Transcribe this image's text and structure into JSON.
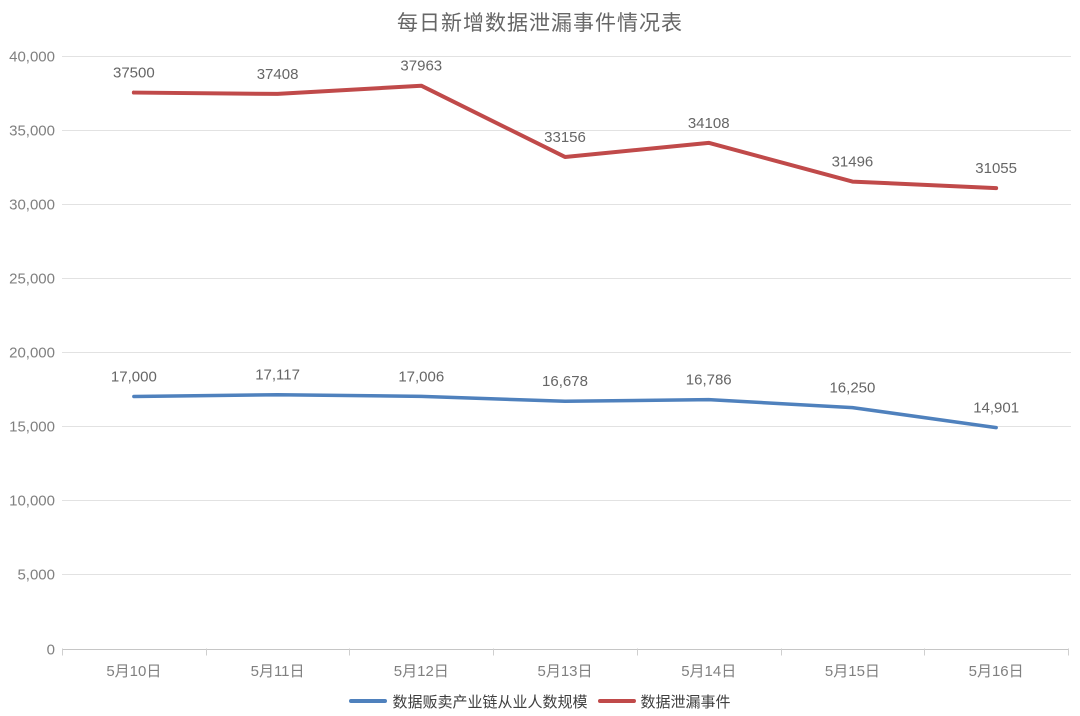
{
  "title": "每日新增数据泄漏事件情况表",
  "colors": {
    "blue": "#4f81bd",
    "red": "#c04a4a",
    "grid": "#e2e2e2",
    "axis": "#c6c6c6",
    "tick": "#cfcfcf",
    "tick_label": "#808080",
    "data_label": "#666666",
    "title_text": "#666666",
    "legend_text": "#404040",
    "background": "#ffffff"
  },
  "chart_data": {
    "type": "line",
    "title": "每日新增数据泄漏事件情况表",
    "categories": [
      "5月10日",
      "5月11日",
      "5月12日",
      "5月13日",
      "5月14日",
      "5月15日",
      "5月16日"
    ],
    "series": [
      {
        "name": "数据贩卖产业链从业人数规模",
        "color_key": "blue",
        "values": [
          17000,
          17117,
          17006,
          16678,
          16786,
          16250,
          14901
        ],
        "labels": [
          "17,000",
          "17,117",
          "17,006",
          "16,678",
          "16,786",
          "16,250",
          "14,901"
        ]
      },
      {
        "name": "数据泄漏事件",
        "color_key": "red",
        "values": [
          37500,
          37408,
          37963,
          33156,
          34108,
          31496,
          31055
        ],
        "labels": [
          "37500",
          "37408",
          "37963",
          "33156",
          "34108",
          "31496",
          "31055"
        ]
      }
    ],
    "ylim": [
      0,
      40000
    ],
    "ytick_step": 5000,
    "ytick_labels": [
      "0",
      "5,000",
      "10,000",
      "15,000",
      "20,000",
      "25,000",
      "30,000",
      "35,000",
      "40,000"
    ],
    "grid": true,
    "legend_position": "bottom"
  },
  "legend": {
    "items": [
      {
        "label": "数据贩卖产业链从业人数规模",
        "color_key": "blue"
      },
      {
        "label": "数据泄漏事件",
        "color_key": "red"
      }
    ]
  }
}
